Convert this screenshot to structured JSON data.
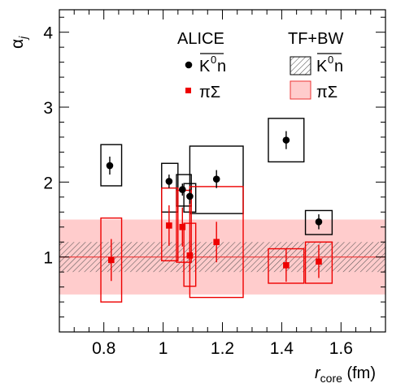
{
  "chart_data": {
    "type": "scatter",
    "x_axis": {
      "label_main": "r",
      "label_sub": "core",
      "label_unit": " (fm)",
      "range": [
        0.65,
        1.75
      ],
      "ticks": [
        0.8,
        1.0,
        1.2,
        1.4,
        1.6
      ],
      "tick_labels": [
        "0.8",
        "1",
        "1.2",
        "1.4",
        "1.6"
      ]
    },
    "y_axis": {
      "label_main": "α",
      "label_sub": "j",
      "range": [
        0,
        4.3
      ],
      "ticks": [
        1,
        2,
        3,
        4
      ],
      "tick_labels": [
        "1",
        "2",
        "3",
        "4"
      ]
    },
    "legend": {
      "data_header": "ALICE",
      "model_header": "TF+BW",
      "kn_label_K": "K",
      "kn_label_sup": "0",
      "kn_label_n": "n",
      "pisigma_label": "πΣ",
      "placement": "top-right"
    },
    "colors": {
      "kn": "#000000",
      "pisigma": "#ee0000",
      "band_pisigma": "#ffcccc",
      "line_pisigma": "#ee3333",
      "hatch": "#555555"
    },
    "bands": {
      "pisigma": {
        "center": 1.0,
        "low": 0.5,
        "high": 1.5
      },
      "kn": {
        "center": 1.0,
        "low": 0.8,
        "high": 1.2
      }
    },
    "series": [
      {
        "name": "K̄0n",
        "marker": "circle",
        "points": [
          {
            "x": 0.82,
            "y": 2.22,
            "stat": 0.12,
            "sys_x": [
              0.79,
              0.86
            ],
            "sys_y": [
              1.95,
              2.5
            ]
          },
          {
            "x": 1.02,
            "y": 2.01,
            "stat": 0.09,
            "sys_x": [
              0.995,
              1.05
            ],
            "sys_y": [
              1.6,
              2.25
            ]
          },
          {
            "x": 1.065,
            "y": 1.9,
            "stat": 0.08,
            "sys_x": [
              1.045,
              1.095
            ],
            "sys_y": [
              1.68,
              2.1
            ]
          },
          {
            "x": 1.09,
            "y": 1.81,
            "stat": 0.1,
            "sys_x": [
              1.07,
              1.11
            ],
            "sys_y": [
              1.6,
              1.98
            ]
          },
          {
            "x": 1.18,
            "y": 2.04,
            "stat": 0.12,
            "sys_x": [
              1.09,
              1.27
            ],
            "sys_y": [
              1.58,
              2.48
            ]
          },
          {
            "x": 1.415,
            "y": 2.56,
            "stat": 0.12,
            "sys_x": [
              1.355,
              1.475
            ],
            "sys_y": [
              2.27,
              2.85
            ]
          },
          {
            "x": 1.525,
            "y": 1.47,
            "stat": 0.1,
            "sys_x": [
              1.48,
              1.57
            ],
            "sys_y": [
              1.3,
              1.62
            ]
          }
        ]
      },
      {
        "name": "πΣ",
        "marker": "square",
        "points": [
          {
            "x": 0.825,
            "y": 0.96,
            "stat": 0.28,
            "sys_x": [
              0.79,
              0.86
            ],
            "sys_y": [
              0.4,
              1.52
            ]
          },
          {
            "x": 1.02,
            "y": 1.42,
            "stat": 0.27,
            "sys_x": [
              0.995,
              1.05
            ],
            "sys_y": [
              0.95,
              1.92
            ]
          },
          {
            "x": 1.065,
            "y": 1.4,
            "stat": 0.26,
            "sys_x": [
              1.045,
              1.095
            ],
            "sys_y": [
              0.93,
              1.89
            ]
          },
          {
            "x": 1.09,
            "y": 1.02,
            "stat": 0.2,
            "sys_x": [
              1.07,
              1.11
            ],
            "sys_y": [
              0.61,
              1.45
            ]
          },
          {
            "x": 1.18,
            "y": 1.2,
            "stat": 0.27,
            "sys_x": [
              1.09,
              1.27
            ],
            "sys_y": [
              0.46,
              1.94
            ]
          },
          {
            "x": 1.415,
            "y": 0.89,
            "stat": 0.22,
            "sys_x": [
              1.355,
              1.475
            ],
            "sys_y": [
              0.65,
              1.11
            ]
          },
          {
            "x": 1.525,
            "y": 0.94,
            "stat": 0.22,
            "sys_x": [
              1.48,
              1.57
            ],
            "sys_y": [
              0.65,
              1.2
            ]
          }
        ]
      }
    ]
  }
}
